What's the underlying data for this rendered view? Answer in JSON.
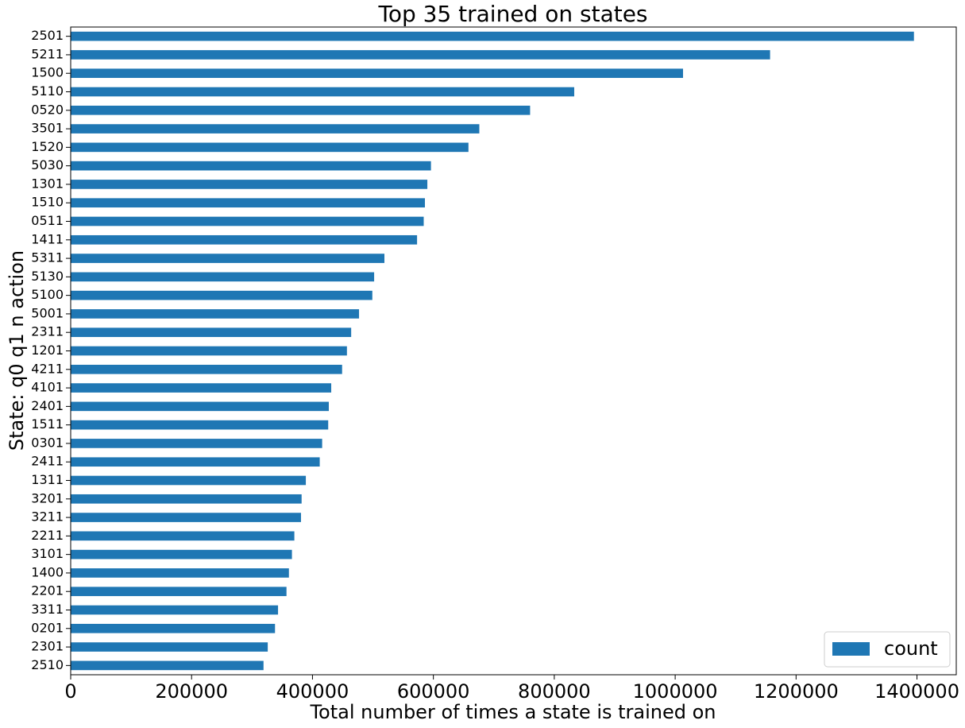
{
  "chart_data": {
    "type": "bar",
    "orientation": "horizontal",
    "title": "Top 35 trained on states",
    "xlabel": "Total number of times a state is trained on",
    "ylabel": "State: q0 q1 n action",
    "categories": [
      "2501",
      "5211",
      "1500",
      "5110",
      "0520",
      "3501",
      "1520",
      "5030",
      "1301",
      "1510",
      "0511",
      "1411",
      "5311",
      "5130",
      "5100",
      "5001",
      "2311",
      "1201",
      "4211",
      "4101",
      "2401",
      "1511",
      "0301",
      "2411",
      "1311",
      "3201",
      "3211",
      "2211",
      "3101",
      "1400",
      "2201",
      "3311",
      "0201",
      "2301",
      "2510"
    ],
    "series": [
      {
        "name": "count",
        "color": "#1f77b4",
        "values": [
          1395000,
          1157000,
          1013000,
          833000,
          760000,
          676000,
          658000,
          596000,
          590000,
          586000,
          584000,
          573000,
          519000,
          502000,
          499000,
          477000,
          464000,
          457000,
          449000,
          431000,
          427000,
          426000,
          416000,
          412000,
          389000,
          382000,
          381000,
          370000,
          366000,
          361000,
          357000,
          343000,
          338000,
          326000,
          319000
        ]
      }
    ],
    "xlim": [
      0,
      1465000
    ],
    "xticks": [
      0,
      200000,
      400000,
      600000,
      800000,
      1000000,
      1200000,
      1400000
    ],
    "legend": "lower right",
    "grid": false
  }
}
